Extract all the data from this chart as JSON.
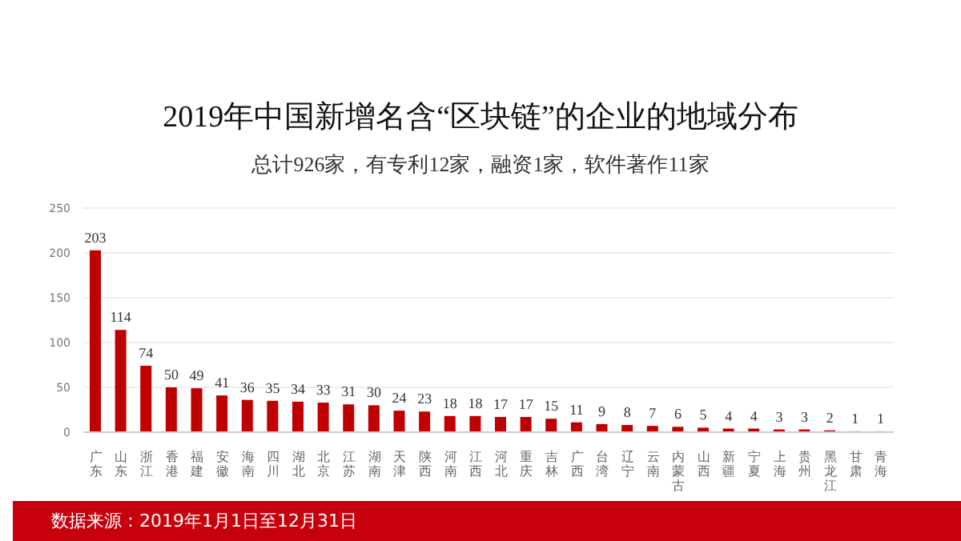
{
  "chart_data": {
    "type": "bar",
    "title": "2019年中国新增名含“区块链”的企业的地域分布",
    "subtitle": "总计926家，有专利12家，融资1家，软件著作11家",
    "categories": [
      "广东",
      "山东",
      "浙江",
      "香港",
      "福建",
      "安徽",
      "海南",
      "四川",
      "湖北",
      "北京",
      "江苏",
      "湖南",
      "天津",
      "陕西",
      "河南",
      "江西",
      "河北",
      "重庆",
      "吉林",
      "广西",
      "台湾",
      "辽宁",
      "云南",
      "内蒙古",
      "山西",
      "新疆",
      "宁夏",
      "上海",
      "贵州",
      "黑龙江",
      "甘肃",
      "青海"
    ],
    "values": [
      203,
      114,
      74,
      50,
      49,
      41,
      36,
      35,
      34,
      33,
      31,
      30,
      24,
      23,
      18,
      18,
      17,
      17,
      15,
      11,
      9,
      8,
      7,
      6,
      5,
      4,
      4,
      3,
      3,
      2,
      1,
      1
    ],
    "color": "#c00000",
    "ylim": [
      0,
      250
    ],
    "yticks": [
      0,
      50,
      100,
      150,
      200,
      250
    ],
    "grid": "y",
    "data_labels": true,
    "annotations": [
      "数据来源：2019年1月1日至12月31日"
    ]
  }
}
